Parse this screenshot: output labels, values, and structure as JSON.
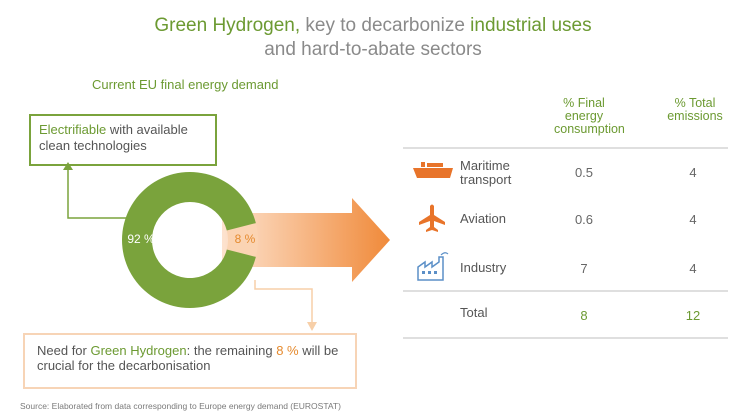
{
  "title": {
    "line1_a": "Green Hydrogen,",
    "line1_b": " key to decarbonize ",
    "line1_c": "industrial uses",
    "line2": "and hard-to-abate sectors"
  },
  "subheading": "Current EU final energy demand",
  "electrifiable_box": {
    "highlight": "Electrifiable",
    "rest": " with available clean technologies"
  },
  "need_box": {
    "a": "Need for ",
    "b": "Green Hydrogen",
    "c": ": the remaining ",
    "d": "8 %",
    "e": " will be crucial for the decarbonisation"
  },
  "source": "Source: Elaborated from data corresponding to Europe energy demand (EUROSTAT)",
  "chart_data": [
    {
      "type": "pie",
      "categories": [
        "Electrifiable",
        "Green Hydrogen"
      ],
      "values": [
        92,
        8
      ],
      "labels": [
        "92 %",
        "8 %"
      ],
      "colors": [
        "#7aa33c",
        "#fbd4b3"
      ],
      "label_colors": [
        "#ffffff",
        "#e58a2e"
      ],
      "donut": true
    },
    {
      "type": "table",
      "columns": [
        "% Final energy consumption",
        "% Total emissions"
      ],
      "rows": [
        {
          "label": "Maritime transport",
          "icon": "ship-icon",
          "final_energy": "0.5",
          "emissions": "4"
        },
        {
          "label": "Aviation",
          "icon": "airplane-icon",
          "final_energy": "0.6",
          "emissions": "4"
        },
        {
          "label": "Industry",
          "icon": "factory-icon",
          "final_energy": "7",
          "emissions": "4"
        }
      ],
      "total": {
        "label": "Total",
        "final_energy": "8",
        "emissions": "12"
      }
    }
  ],
  "colors": {
    "green": "#6c9a32",
    "orange": "#e58a2e",
    "icon_orange": "#e8742a",
    "icon_blue": "#5b8fc7",
    "peach": "#fbd4b3"
  }
}
